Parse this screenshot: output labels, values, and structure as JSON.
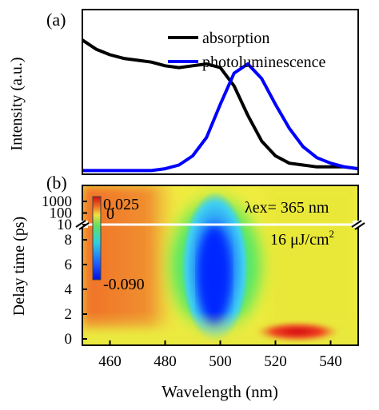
{
  "chart_data": [
    {
      "panel_label": "(a)",
      "type": "line",
      "xlim": [
        450,
        550
      ],
      "ylabel": "Intensity (a.u.)",
      "legend_placement": "top-right",
      "grid": false,
      "series": [
        {
          "name": "absorption",
          "color": "#000000",
          "x": [
            450,
            455,
            460,
            465,
            470,
            475,
            480,
            485,
            490,
            495,
            500,
            505,
            510,
            515,
            520,
            525,
            530,
            535,
            540,
            545,
            550
          ],
          "y": [
            0.73,
            0.68,
            0.65,
            0.63,
            0.62,
            0.61,
            0.59,
            0.58,
            0.59,
            0.6,
            0.58,
            0.48,
            0.32,
            0.18,
            0.1,
            0.06,
            0.05,
            0.04,
            0.04,
            0.04,
            0.03
          ]
        },
        {
          "name": "photoluminescence",
          "color": "#0000ff",
          "x": [
            450,
            455,
            460,
            465,
            470,
            475,
            480,
            485,
            490,
            495,
            500,
            505,
            510,
            515,
            520,
            525,
            530,
            535,
            540,
            545,
            550
          ],
          "y": [
            0.02,
            0.02,
            0.02,
            0.02,
            0.02,
            0.02,
            0.03,
            0.05,
            0.1,
            0.2,
            0.38,
            0.55,
            0.6,
            0.52,
            0.38,
            0.25,
            0.15,
            0.09,
            0.06,
            0.04,
            0.03
          ]
        }
      ]
    },
    {
      "panel_label": "(b)",
      "type": "heatmap",
      "xlabel": "Wavelength (nm)",
      "ylabel": "Delay time (ps)",
      "xlim": [
        450,
        550
      ],
      "x_ticks": [
        "460",
        "480",
        "500",
        "520",
        "540"
      ],
      "y_ticks_linear": [
        "0",
        "2",
        "4",
        "6",
        "8"
      ],
      "y_ticks_log": [
        "10",
        "100",
        "1000"
      ],
      "y_axis_break_at_ps": 9,
      "colorbar": {
        "max_label": "0.025",
        "zero_label": "0",
        "min_label": "-0.090"
      },
      "annotations": {
        "excitation": "λex= 365 nm",
        "fluence": "16 μJ/cm",
        "fluence_superscript": "2"
      },
      "features": [
        {
          "description": "bleach minimum",
          "wavelength_nm": 501,
          "delay_ps": [
            1,
            8
          ],
          "value": -0.09
        },
        {
          "description": "positive band",
          "wavelength_nm": 520,
          "delay_ps": [
            0,
            1
          ],
          "value": 0.025
        }
      ]
    }
  ],
  "colors": {
    "heat_bg": "#f0f040",
    "heat_orange": "#f08030",
    "heat_green": "#40e080",
    "heat_cyan": "#30c8f0",
    "heat_blue": "#1060ff",
    "heat_red": "#e02010"
  }
}
